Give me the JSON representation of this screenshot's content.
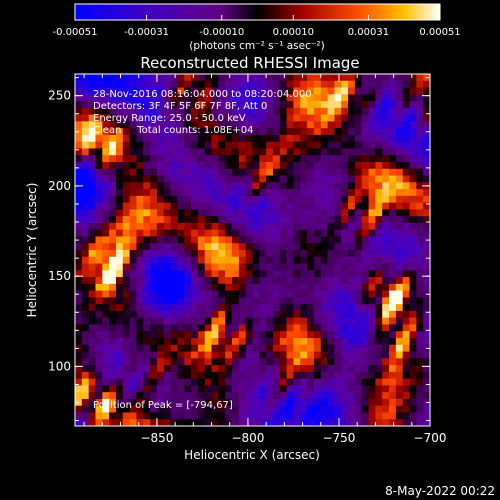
{
  "colorbar": {
    "ticks": [
      "-0.00051",
      "-0.00031",
      "-0.00010",
      "0.00010",
      "0.00031",
      "0.00051"
    ],
    "units": "(photons cm⁻² s⁻¹ asec⁻²)",
    "range": [
      -0.00051,
      0.00051
    ]
  },
  "chart_data": {
    "type": "heatmap",
    "title": "Reconstructed RHESSI Image",
    "xlabel": "Heliocentric X (arcsec)",
    "ylabel": "Heliocentric Y (arcsec)",
    "xlim": [
      -895,
      -700
    ],
    "ylim": [
      67,
      262
    ],
    "x_ticks": [
      -850,
      -800,
      -750,
      -700
    ],
    "x_tick_labels": [
      "−850",
      "−800",
      "−750",
      "−700"
    ],
    "y_ticks": [
      100,
      150,
      200,
      250
    ],
    "y_tick_labels": [
      "100",
      "150",
      "200",
      "250"
    ],
    "annotations": [
      "28-Nov-2016 08:16:04.000 to 08:20:04.000",
      "Detectors: 3F 4F 5F 6F 7F 8F, Att 0",
      "Energy Range: 25.0 - 50.0 keV",
      "Clean     Total counts: 1.08E+04"
    ],
    "peak_label": "Position of Peak = [-794,67]",
    "peak": [
      -794,
      67
    ]
  },
  "footer": {
    "timestamp": "8-May-2022 00:22"
  }
}
